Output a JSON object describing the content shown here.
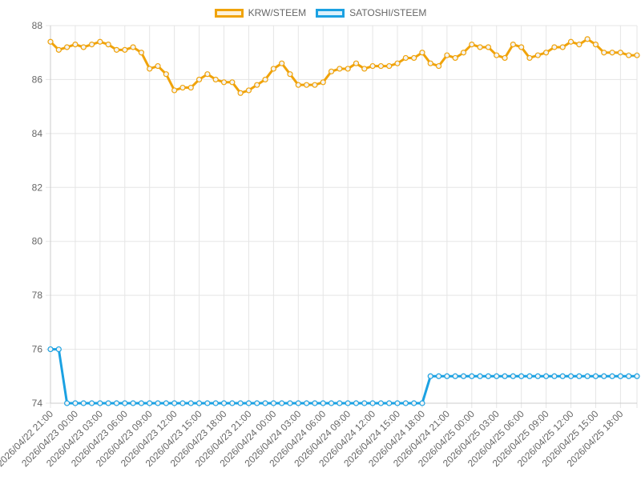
{
  "chart_data": {
    "type": "line",
    "title": "",
    "legend_position": "top-center",
    "grid": true,
    "ylim": [
      74,
      88
    ],
    "y_ticks": [
      "74",
      "76",
      "78",
      "80",
      "82",
      "84",
      "86",
      "88"
    ],
    "x_tick_labels": [
      "2026/04/22 21:00",
      "2026/04/23 00:00",
      "2026/04/23 03:00",
      "2026/04/23 06:00",
      "2026/04/23 09:00",
      "2026/04/23 12:00",
      "2026/04/23 15:00",
      "2026/04/23 18:00",
      "2026/04/23 21:00",
      "2026/04/24 00:00",
      "2026/04/24 03:00",
      "2026/04/24 06:00",
      "2026/04/24 09:00",
      "2026/04/24 12:00",
      "2026/04/24 15:00",
      "2026/04/24 18:00",
      "2026/04/24 21:00",
      "2026/04/25 00:00",
      "2026/04/25 03:00",
      "2026/04/25 06:00",
      "2026/04/25 09:00",
      "2026/04/25 12:00",
      "2026/04/25 15:00",
      "2026/04/25 18:00"
    ],
    "points_per_label": 3,
    "series": [
      {
        "name": "KRW/STEEM",
        "color": "#f0a30a",
        "values": [
          87.4,
          87.1,
          87.2,
          87.3,
          87.2,
          87.3,
          87.4,
          87.3,
          87.1,
          87.1,
          87.2,
          87.0,
          86.4,
          86.5,
          86.2,
          85.6,
          85.7,
          85.7,
          86.0,
          86.2,
          86.0,
          85.9,
          85.9,
          85.5,
          85.6,
          85.8,
          86.0,
          86.4,
          86.6,
          86.2,
          85.8,
          85.8,
          85.8,
          85.9,
          86.3,
          86.4,
          86.4,
          86.6,
          86.4,
          86.5,
          86.5,
          86.5,
          86.6,
          86.8,
          86.8,
          87.0,
          86.6,
          86.5,
          86.9,
          86.8,
          87.0,
          87.3,
          87.2,
          87.2,
          86.9,
          86.8,
          87.3,
          87.2,
          86.8,
          86.9,
          87.0,
          87.2,
          87.2,
          87.4,
          87.3,
          87.5,
          87.3,
          87.0,
          87.0,
          87.0,
          86.9,
          86.9
        ]
      },
      {
        "name": "SATOSHI/STEEM",
        "color": "#1ba1e2",
        "values": [
          76,
          76,
          74,
          74,
          74,
          74,
          74,
          74,
          74,
          74,
          74,
          74,
          74,
          74,
          74,
          74,
          74,
          74,
          74,
          74,
          74,
          74,
          74,
          74,
          74,
          74,
          74,
          74,
          74,
          74,
          74,
          74,
          74,
          74,
          74,
          74,
          74,
          74,
          74,
          74,
          74,
          74,
          74,
          74,
          74,
          74,
          75,
          75,
          75,
          75,
          75,
          75,
          75,
          75,
          75,
          75,
          75,
          75,
          75,
          75,
          75,
          75,
          75,
          75,
          75,
          75,
          75,
          75,
          75,
          75,
          75,
          75
        ]
      }
    ]
  }
}
